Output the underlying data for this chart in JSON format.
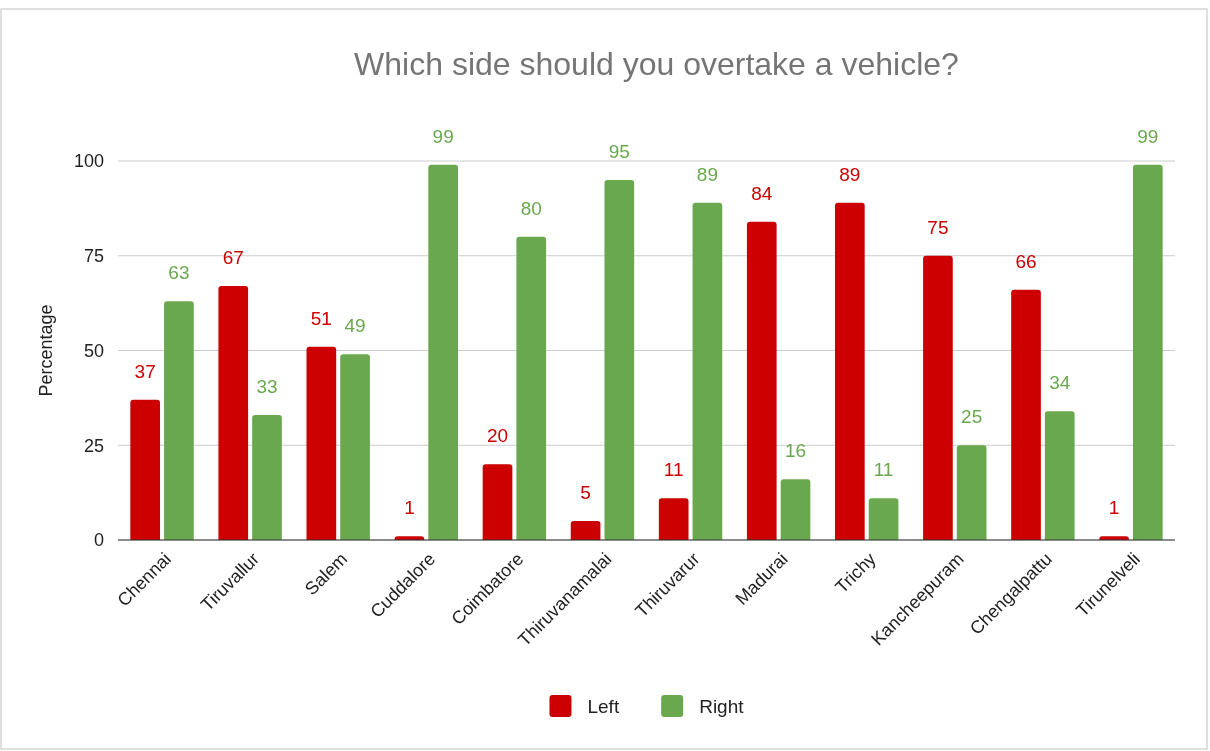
{
  "chart_data": {
    "type": "bar",
    "title": "Which side should you overtake a vehicle?",
    "ylabel": "Percentage",
    "categories": [
      "Chennai",
      "Tiruvallur",
      "Salem",
      "Cuddalore",
      "Coimbatore",
      "Thiruvanamalai",
      "Thiruvarur",
      "Madurai",
      "Trichy",
      "Kancheepuram",
      "Chengalpattu",
      "Tirunelveli"
    ],
    "series": [
      {
        "name": "Left",
        "color": "#cc0000",
        "values": [
          37,
          67,
          51,
          1,
          20,
          5,
          11,
          84,
          89,
          75,
          66,
          1
        ]
      },
      {
        "name": "Right",
        "color": "#6aa84f",
        "values": [
          63,
          33,
          49,
          99,
          80,
          95,
          89,
          16,
          11,
          25,
          34,
          99
        ]
      }
    ],
    "ylim": [
      0,
      100
    ],
    "yticks": [
      0,
      25,
      50,
      75,
      100
    ],
    "grid": "y",
    "legend": "bottom",
    "data_labels": true
  }
}
